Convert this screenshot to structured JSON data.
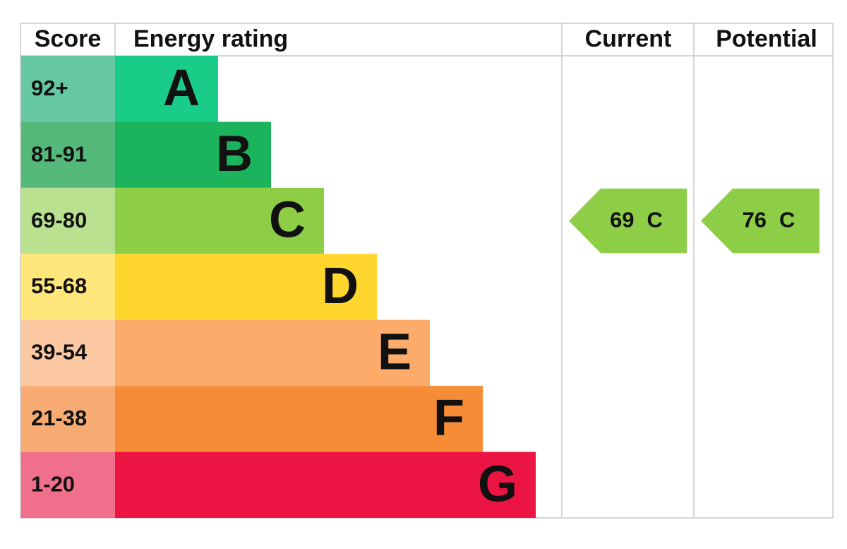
{
  "header": {
    "score": "Score",
    "rating": "Energy rating",
    "current": "Current",
    "potential": "Potential"
  },
  "bands": [
    {
      "score": "92+",
      "letter": "A",
      "color": "#19cc88",
      "score_color": "#67c9a4"
    },
    {
      "score": "81-91",
      "letter": "B",
      "color": "#1bb35b",
      "score_color": "#55b97b"
    },
    {
      "score": "69-80",
      "letter": "C",
      "color": "#8dce46",
      "score_color": "#b9e18f"
    },
    {
      "score": "55-68",
      "letter": "D",
      "color": "#ffd62d",
      "score_color": "#ffe67a"
    },
    {
      "score": "39-54",
      "letter": "E",
      "color": "#fcab6b",
      "score_color": "#fdc9a2"
    },
    {
      "score": "21-38",
      "letter": "F",
      "color": "#f68c36",
      "score_color": "#f8ab73"
    },
    {
      "score": "1-20",
      "letter": "G",
      "color": "#ec1443",
      "score_color": "#f06f8b"
    }
  ],
  "current": {
    "score": 69,
    "band": "C"
  },
  "potential": {
    "score": 76,
    "band": "C"
  }
}
